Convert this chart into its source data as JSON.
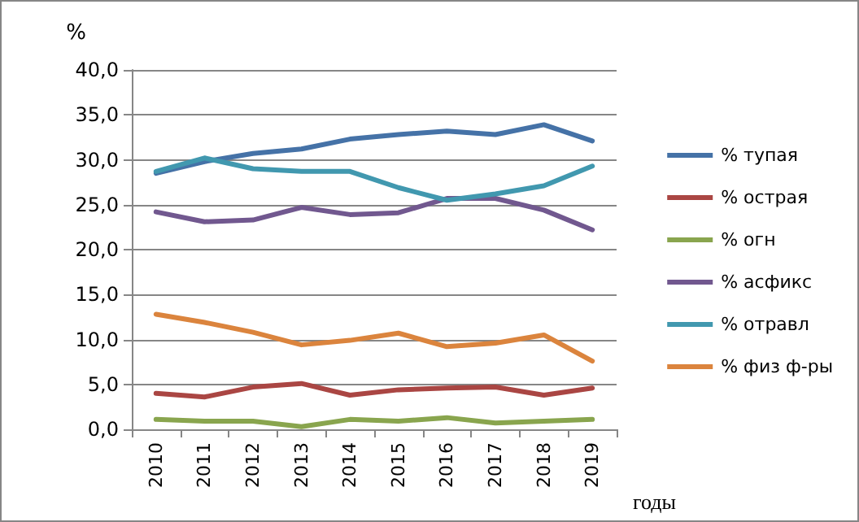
{
  "chart_data": {
    "type": "line",
    "ylabel": "%",
    "xlabel": "годы",
    "categories": [
      "2010",
      "2011",
      "2012",
      "2013",
      "2014",
      "2015",
      "2016",
      "2017",
      "2018",
      "2019"
    ],
    "series": [
      {
        "name": "% тупая",
        "color": "#4572a7",
        "values": [
          28.5,
          29.8,
          30.7,
          31.2,
          32.3,
          32.8,
          33.2,
          32.8,
          33.9,
          32.1
        ]
      },
      {
        "name": "% острая",
        "color": "#aa4643",
        "values": [
          4.0,
          3.6,
          4.7,
          5.1,
          3.8,
          4.4,
          4.6,
          4.7,
          3.8,
          4.6
        ]
      },
      {
        "name": "% огн",
        "color": "#89a54e",
        "values": [
          1.1,
          0.9,
          0.9,
          0.3,
          1.1,
          0.9,
          1.3,
          0.7,
          0.9,
          1.1
        ]
      },
      {
        "name": "% асфикс",
        "color": "#71588f",
        "values": [
          24.2,
          23.1,
          23.3,
          24.7,
          23.9,
          24.1,
          25.7,
          25.7,
          24.4,
          22.2
        ]
      },
      {
        "name": "% отравл",
        "color": "#4198af",
        "values": [
          28.7,
          30.2,
          29.0,
          28.7,
          28.7,
          26.9,
          25.5,
          26.2,
          27.1,
          29.3
        ]
      },
      {
        "name": "% физ ф-ры",
        "color": "#db843d",
        "values": [
          12.8,
          11.9,
          10.8,
          9.4,
          9.9,
          10.7,
          9.2,
          9.6,
          10.5,
          7.6
        ]
      }
    ],
    "ylim": [
      0,
      40
    ],
    "yticks": [
      {
        "value": 0,
        "label": "0,0"
      },
      {
        "value": 5,
        "label": "5,0"
      },
      {
        "value": 10,
        "label": "10,0"
      },
      {
        "value": 15,
        "label": "15,0"
      },
      {
        "value": 20,
        "label": "20,0"
      },
      {
        "value": 25,
        "label": "25,0"
      },
      {
        "value": 30,
        "label": "30,0"
      },
      {
        "value": 35,
        "label": "35,0"
      },
      {
        "value": 40,
        "label": "40,0"
      }
    ],
    "grid": "y",
    "legend": "right",
    "marker": "none",
    "line_style": "solid"
  }
}
